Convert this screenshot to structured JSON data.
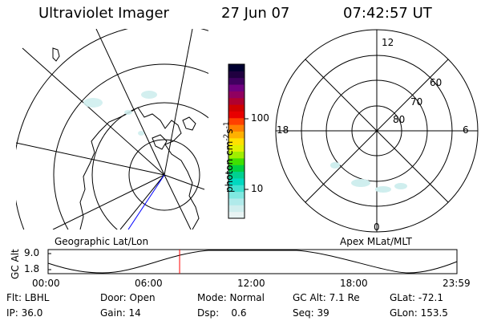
{
  "header": {
    "instrument": "Ultraviolet Imager",
    "date": "27 Jun 07",
    "time": "07:42:57 UT"
  },
  "left_panel": {
    "label": "Geographic Lat/Lon"
  },
  "right_panel": {
    "label": "Apex MLat/MLT",
    "mlt_labels": {
      "top": "12",
      "bottom": "0",
      "left": "18",
      "right": "6"
    },
    "lat_labels": [
      "60",
      "70",
      "80"
    ]
  },
  "colorbar": {
    "unit_main": "photon cm",
    "unit_exp1": "-2",
    "unit_mid": "s",
    "unit_exp2": "-1",
    "tick_100": "100",
    "tick_10": "10",
    "colors": [
      "#e8f4f4",
      "#d0eeee",
      "#b0eaea",
      "#80e8e0",
      "#40e0d0",
      "#00d8c0",
      "#00d090",
      "#00d040",
      "#40e000",
      "#a0ee00",
      "#e0f000",
      "#ffe000",
      "#ffb000",
      "#ff8000",
      "#ff4000",
      "#e80000",
      "#d00000",
      "#b00030",
      "#900060",
      "#700080",
      "#400060",
      "#200040",
      "#000030"
    ]
  },
  "altitude_plot": {
    "ylabel": "GC Alt",
    "ymax": "9.0",
    "ymin": "1.8",
    "x_ticks": [
      "00:00",
      "06:00",
      "12:00",
      "18:00",
      "23:59"
    ],
    "current_time_hours": 7.72
  },
  "footer": {
    "filter": "Flt: LBHL",
    "door": "Door: Open",
    "mode": "Mode: Normal",
    "gc_alt": "GC Alt: 7.1 Re",
    "glat": "GLat: -72.1",
    "ip": "IP: 36.0",
    "gain": "Gain: 14",
    "dsp": "Dsp:    0.6",
    "seq": "Seq: 39",
    "glon": "GLon: 153.5"
  }
}
